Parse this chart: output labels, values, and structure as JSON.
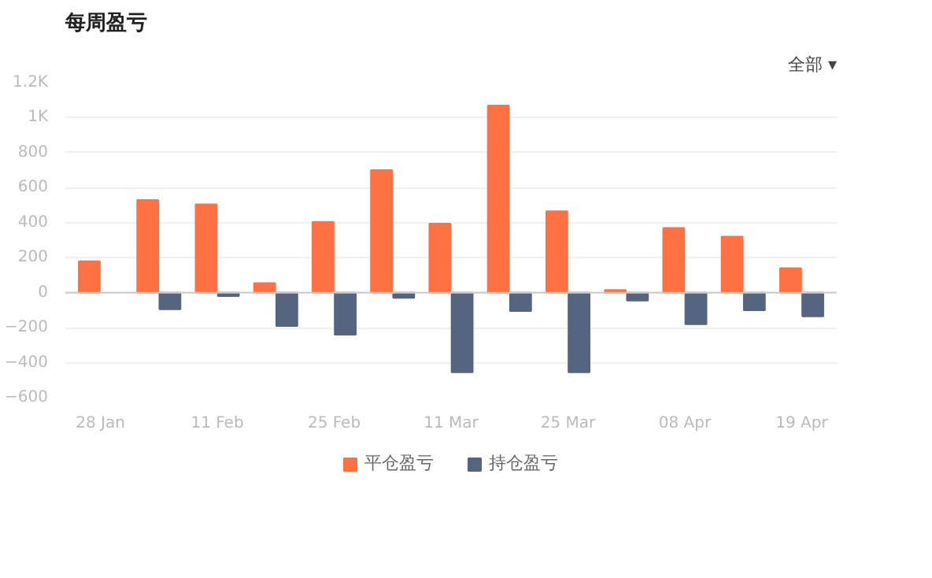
{
  "chart_data": {
    "type": "bar",
    "title": "每周盈亏",
    "annotations": [
      "全部 ▾"
    ],
    "categories": [
      "28 Jan",
      null,
      "11 Feb",
      null,
      "25 Feb",
      null,
      "11 Mar",
      null,
      "25 Mar",
      null,
      "08 Apr",
      null,
      "19 Apr"
    ],
    "series": [
      {
        "name": "平仓盈亏",
        "color": "#ff7043",
        "values": [
          180,
          530,
          505,
          55,
          405,
          700,
          395,
          1070,
          465,
          15,
          370,
          320,
          140
        ]
      },
      {
        "name": "持仓盈亏",
        "color": "#56657f",
        "values": [
          null,
          -95,
          -20,
          -190,
          -240,
          -30,
          -455,
          -105,
          -455,
          -45,
          -180,
          -100,
          -135
        ]
      }
    ],
    "ylim": [
      -600,
      1200
    ],
    "yticks": [
      -600,
      -400,
      -200,
      0,
      200,
      400,
      600,
      800,
      {
        "value": 1000,
        "label": "1K"
      },
      {
        "value": 1200,
        "label": "1.2K"
      }
    ],
    "grid": "y",
    "legend": "bottom"
  }
}
